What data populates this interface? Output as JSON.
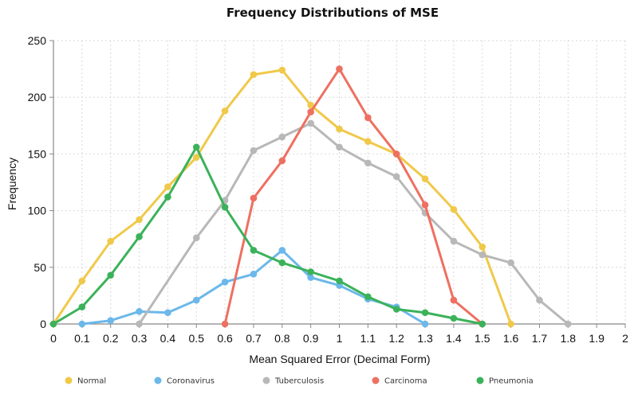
{
  "chart_data": {
    "type": "line",
    "title": "Frequency Distributions of MSE",
    "xlabel": "Mean Squared Error (Decimal Form)",
    "ylabel": "Frequency",
    "xlim": [
      0,
      2
    ],
    "ylim": [
      0,
      250
    ],
    "x_ticks": [
      "0",
      "0.1",
      "0.2",
      "0.3",
      "0.4",
      "0.5",
      "0.6",
      "0.7",
      "0.8",
      "0.9",
      "1",
      "1.1",
      "1.2",
      "1.3",
      "1.4",
      "1.5",
      "1.6",
      "1.7",
      "1.8",
      "1.9",
      "2"
    ],
    "y_ticks": [
      "0",
      "50",
      "100",
      "150",
      "200",
      "250"
    ],
    "grid": true,
    "legend_position": "bottom",
    "series": [
      {
        "name": "Normal",
        "color": "#f0c94a",
        "points": [
          [
            0,
            0
          ],
          [
            0.1,
            38
          ],
          [
            0.2,
            73
          ],
          [
            0.3,
            92
          ],
          [
            0.4,
            121
          ],
          [
            0.5,
            147
          ],
          [
            0.6,
            188
          ],
          [
            0.7,
            220
          ],
          [
            0.8,
            224
          ],
          [
            0.9,
            193
          ],
          [
            1.0,
            172
          ],
          [
            1.1,
            161
          ],
          [
            1.2,
            150
          ],
          [
            1.3,
            128
          ],
          [
            1.4,
            101
          ],
          [
            1.5,
            68
          ],
          [
            1.6,
            0
          ]
        ]
      },
      {
        "name": "Coronavirus",
        "color": "#6cb8ea",
        "points": [
          [
            0.1,
            0
          ],
          [
            0.2,
            3
          ],
          [
            0.3,
            11
          ],
          [
            0.4,
            10
          ],
          [
            0.5,
            21
          ],
          [
            0.6,
            37
          ],
          [
            0.7,
            44
          ],
          [
            0.8,
            65
          ],
          [
            0.9,
            41
          ],
          [
            1.0,
            34
          ],
          [
            1.1,
            22
          ],
          [
            1.2,
            15
          ],
          [
            1.3,
            0
          ]
        ]
      },
      {
        "name": "Tuberculosis",
        "color": "#b8b8b8",
        "points": [
          [
            0.3,
            0
          ],
          [
            0.5,
            76
          ],
          [
            0.6,
            109
          ],
          [
            0.7,
            153
          ],
          [
            0.8,
            165
          ],
          [
            0.9,
            177
          ],
          [
            1.0,
            156
          ],
          [
            1.1,
            142
          ],
          [
            1.2,
            130
          ],
          [
            1.3,
            98
          ],
          [
            1.4,
            73
          ],
          [
            1.5,
            61
          ],
          [
            1.6,
            54
          ],
          [
            1.7,
            21
          ],
          [
            1.8,
            0
          ]
        ]
      },
      {
        "name": "Carcinoma",
        "color": "#ee7061",
        "points": [
          [
            0.6,
            0
          ],
          [
            0.7,
            111
          ],
          [
            0.8,
            144
          ],
          [
            0.9,
            187
          ],
          [
            1.0,
            225
          ],
          [
            1.1,
            182
          ],
          [
            1.2,
            150
          ],
          [
            1.3,
            105
          ],
          [
            1.4,
            21
          ],
          [
            1.5,
            0
          ]
        ]
      },
      {
        "name": "Pneumonia",
        "color": "#3bb25a",
        "points": [
          [
            0,
            0
          ],
          [
            0.1,
            15
          ],
          [
            0.2,
            43
          ],
          [
            0.3,
            77
          ],
          [
            0.4,
            112
          ],
          [
            0.5,
            156
          ],
          [
            0.6,
            103
          ],
          [
            0.7,
            65
          ],
          [
            0.8,
            54
          ],
          [
            0.9,
            46
          ],
          [
            1.0,
            38
          ],
          [
            1.1,
            24
          ],
          [
            1.2,
            13
          ],
          [
            1.3,
            10
          ],
          [
            1.4,
            5
          ],
          [
            1.5,
            0
          ]
        ]
      }
    ]
  }
}
